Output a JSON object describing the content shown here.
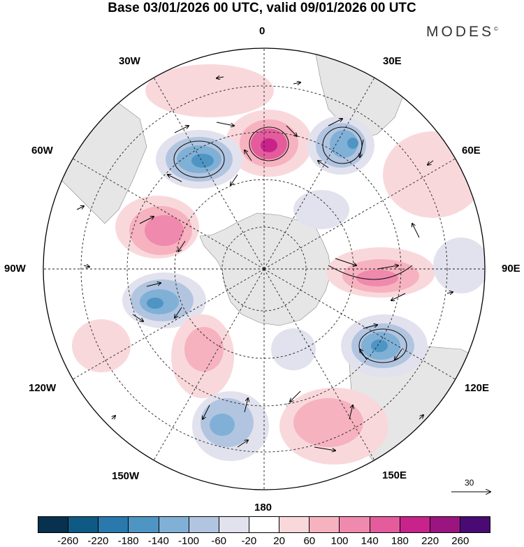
{
  "title": "Base 03/01/2026 00 UTC, valid 09/01/2026 00 UTC",
  "brand": "MODES",
  "brand_mark": "©",
  "longitude_labels": {
    "lon_0": "0",
    "lon_30e": "30E",
    "lon_60e": "60E",
    "lon_90e": "90E",
    "lon_120e": "120E",
    "lon_150e": "150E",
    "lon_180": "180",
    "lon_150w": "150W",
    "lon_120w": "120W",
    "lon_90w": "90W",
    "lon_60w": "60W",
    "lon_30w": "30W"
  },
  "reference_vector": "30",
  "colorbar": {
    "colors": [
      "#08304f",
      "#0f5a85",
      "#2a79ad",
      "#4e95c4",
      "#80b0d6",
      "#b2c5e0",
      "#e2e2ee",
      "#ffffff",
      "#f9d8dc",
      "#f6b2bf",
      "#f089ae",
      "#e45c9c",
      "#c8238b",
      "#9b1580",
      "#4a0a73"
    ],
    "tick_labels": [
      "-260",
      "-220",
      "-180",
      "-140",
      "-100",
      "-60",
      "-20",
      "20",
      "60",
      "100",
      "140",
      "180",
      "220",
      "260"
    ]
  }
}
